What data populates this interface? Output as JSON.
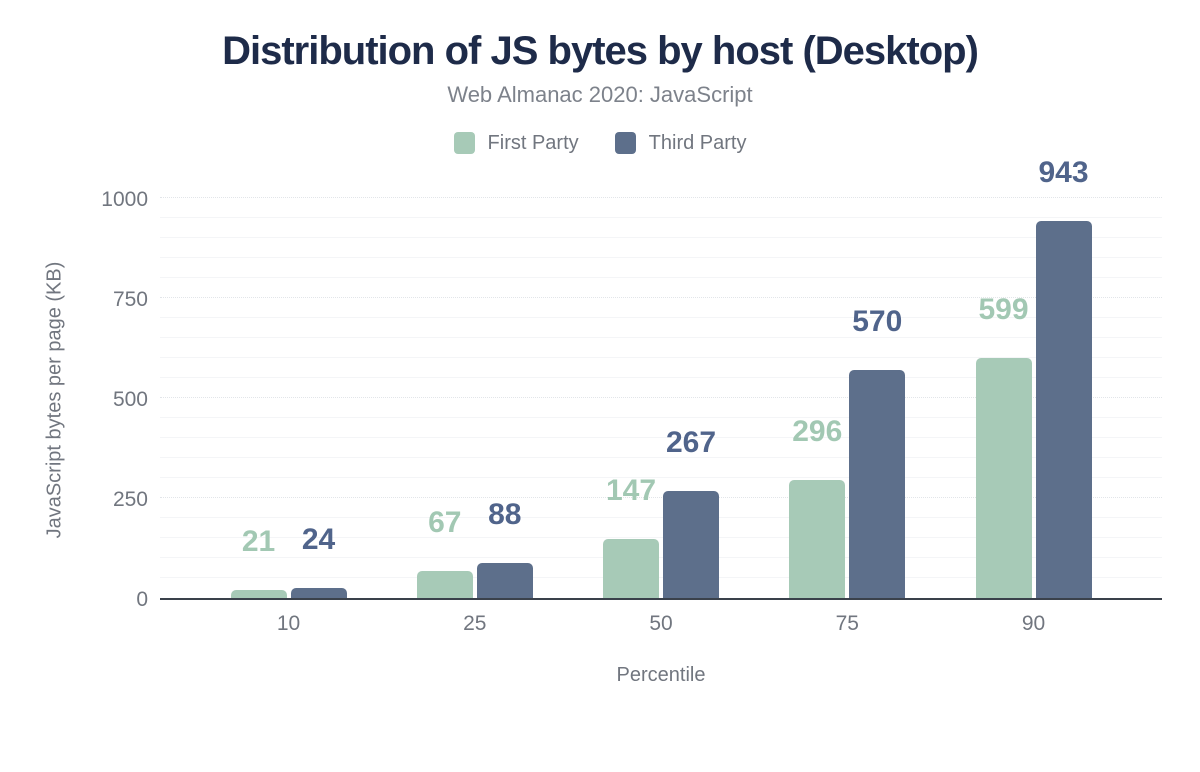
{
  "header": {
    "title": "Distribution of JS bytes by host (Desktop)",
    "subtitle": "Web Almanac 2020: JavaScript"
  },
  "legend": [
    {
      "label": "First Party",
      "color": "#a7cab7"
    },
    {
      "label": "Third Party",
      "color": "#5d6f8b"
    }
  ],
  "chart_data": {
    "type": "bar",
    "title": "Distribution of JS bytes by host (Desktop)",
    "subtitle": "Web Almanac 2020: JavaScript",
    "categories": [
      "10",
      "25",
      "50",
      "75",
      "90"
    ],
    "series": [
      {
        "name": "First Party",
        "color": "#a7cab7",
        "label_color": "#a2c8b3",
        "values": [
          21,
          67,
          147,
          296,
          599
        ]
      },
      {
        "name": "Third Party",
        "color": "#5d6f8b",
        "label_color": "#50648b",
        "values": [
          24,
          88,
          267,
          570,
          943
        ]
      }
    ],
    "xlabel": "Percentile",
    "ylabel": "JavaScript bytes per page (KB)",
    "ylim": [
      0,
      1000
    ],
    "yticks": [
      0,
      250,
      500,
      750,
      1000
    ],
    "grid": {
      "minor_step": 50,
      "major_step": 250,
      "major_style": "dotted",
      "minor_style": "solid"
    },
    "legend_position": "top",
    "data_labels": true
  },
  "colors": {
    "title": "#1e2b49",
    "muted_text": "#71767f",
    "axis_line": "#3a414b",
    "grid_major": "#e2e5e9",
    "grid_minor": "#f4f5f7",
    "background": "#ffffff"
  }
}
